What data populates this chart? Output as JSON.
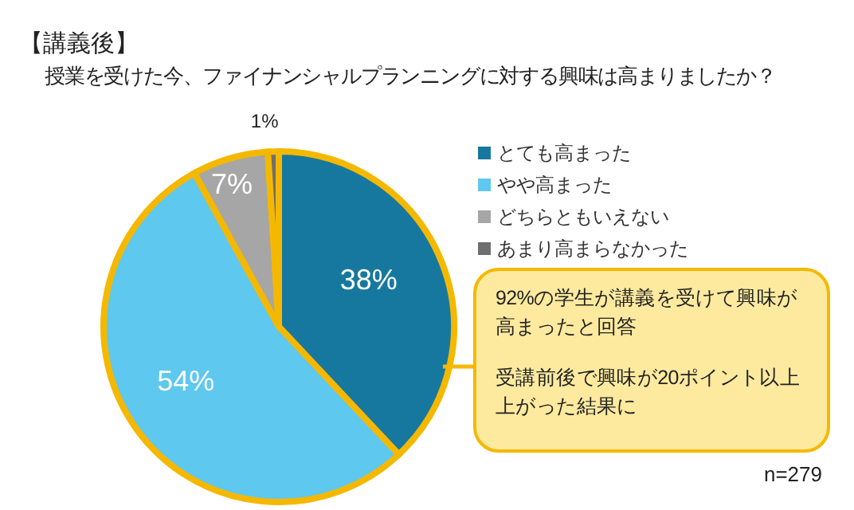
{
  "chart_data": {
    "type": "pie",
    "title": "【講義後】",
    "subtitle": "授業を受けた今、ファイナンシャルプランニングに対する興味は高まりましたか？",
    "categories": [
      "とても高まった",
      "やや高まった",
      "どちらともいえない",
      "あまり高まらなかった"
    ],
    "values": [
      38,
      54,
      7,
      1
    ],
    "colors": [
      "#17789f",
      "#5ec8ef",
      "#a6a6a6",
      "#6f6f6f"
    ],
    "value_labels": [
      "38%",
      "54%",
      "7%",
      "1%"
    ],
    "legend": "right",
    "annotations": [
      "92%の学生が講義を受けて興味が高まったと回答",
      "受講前後で興味が20ポイント以上上がった結果に",
      "n=279"
    ]
  }
}
